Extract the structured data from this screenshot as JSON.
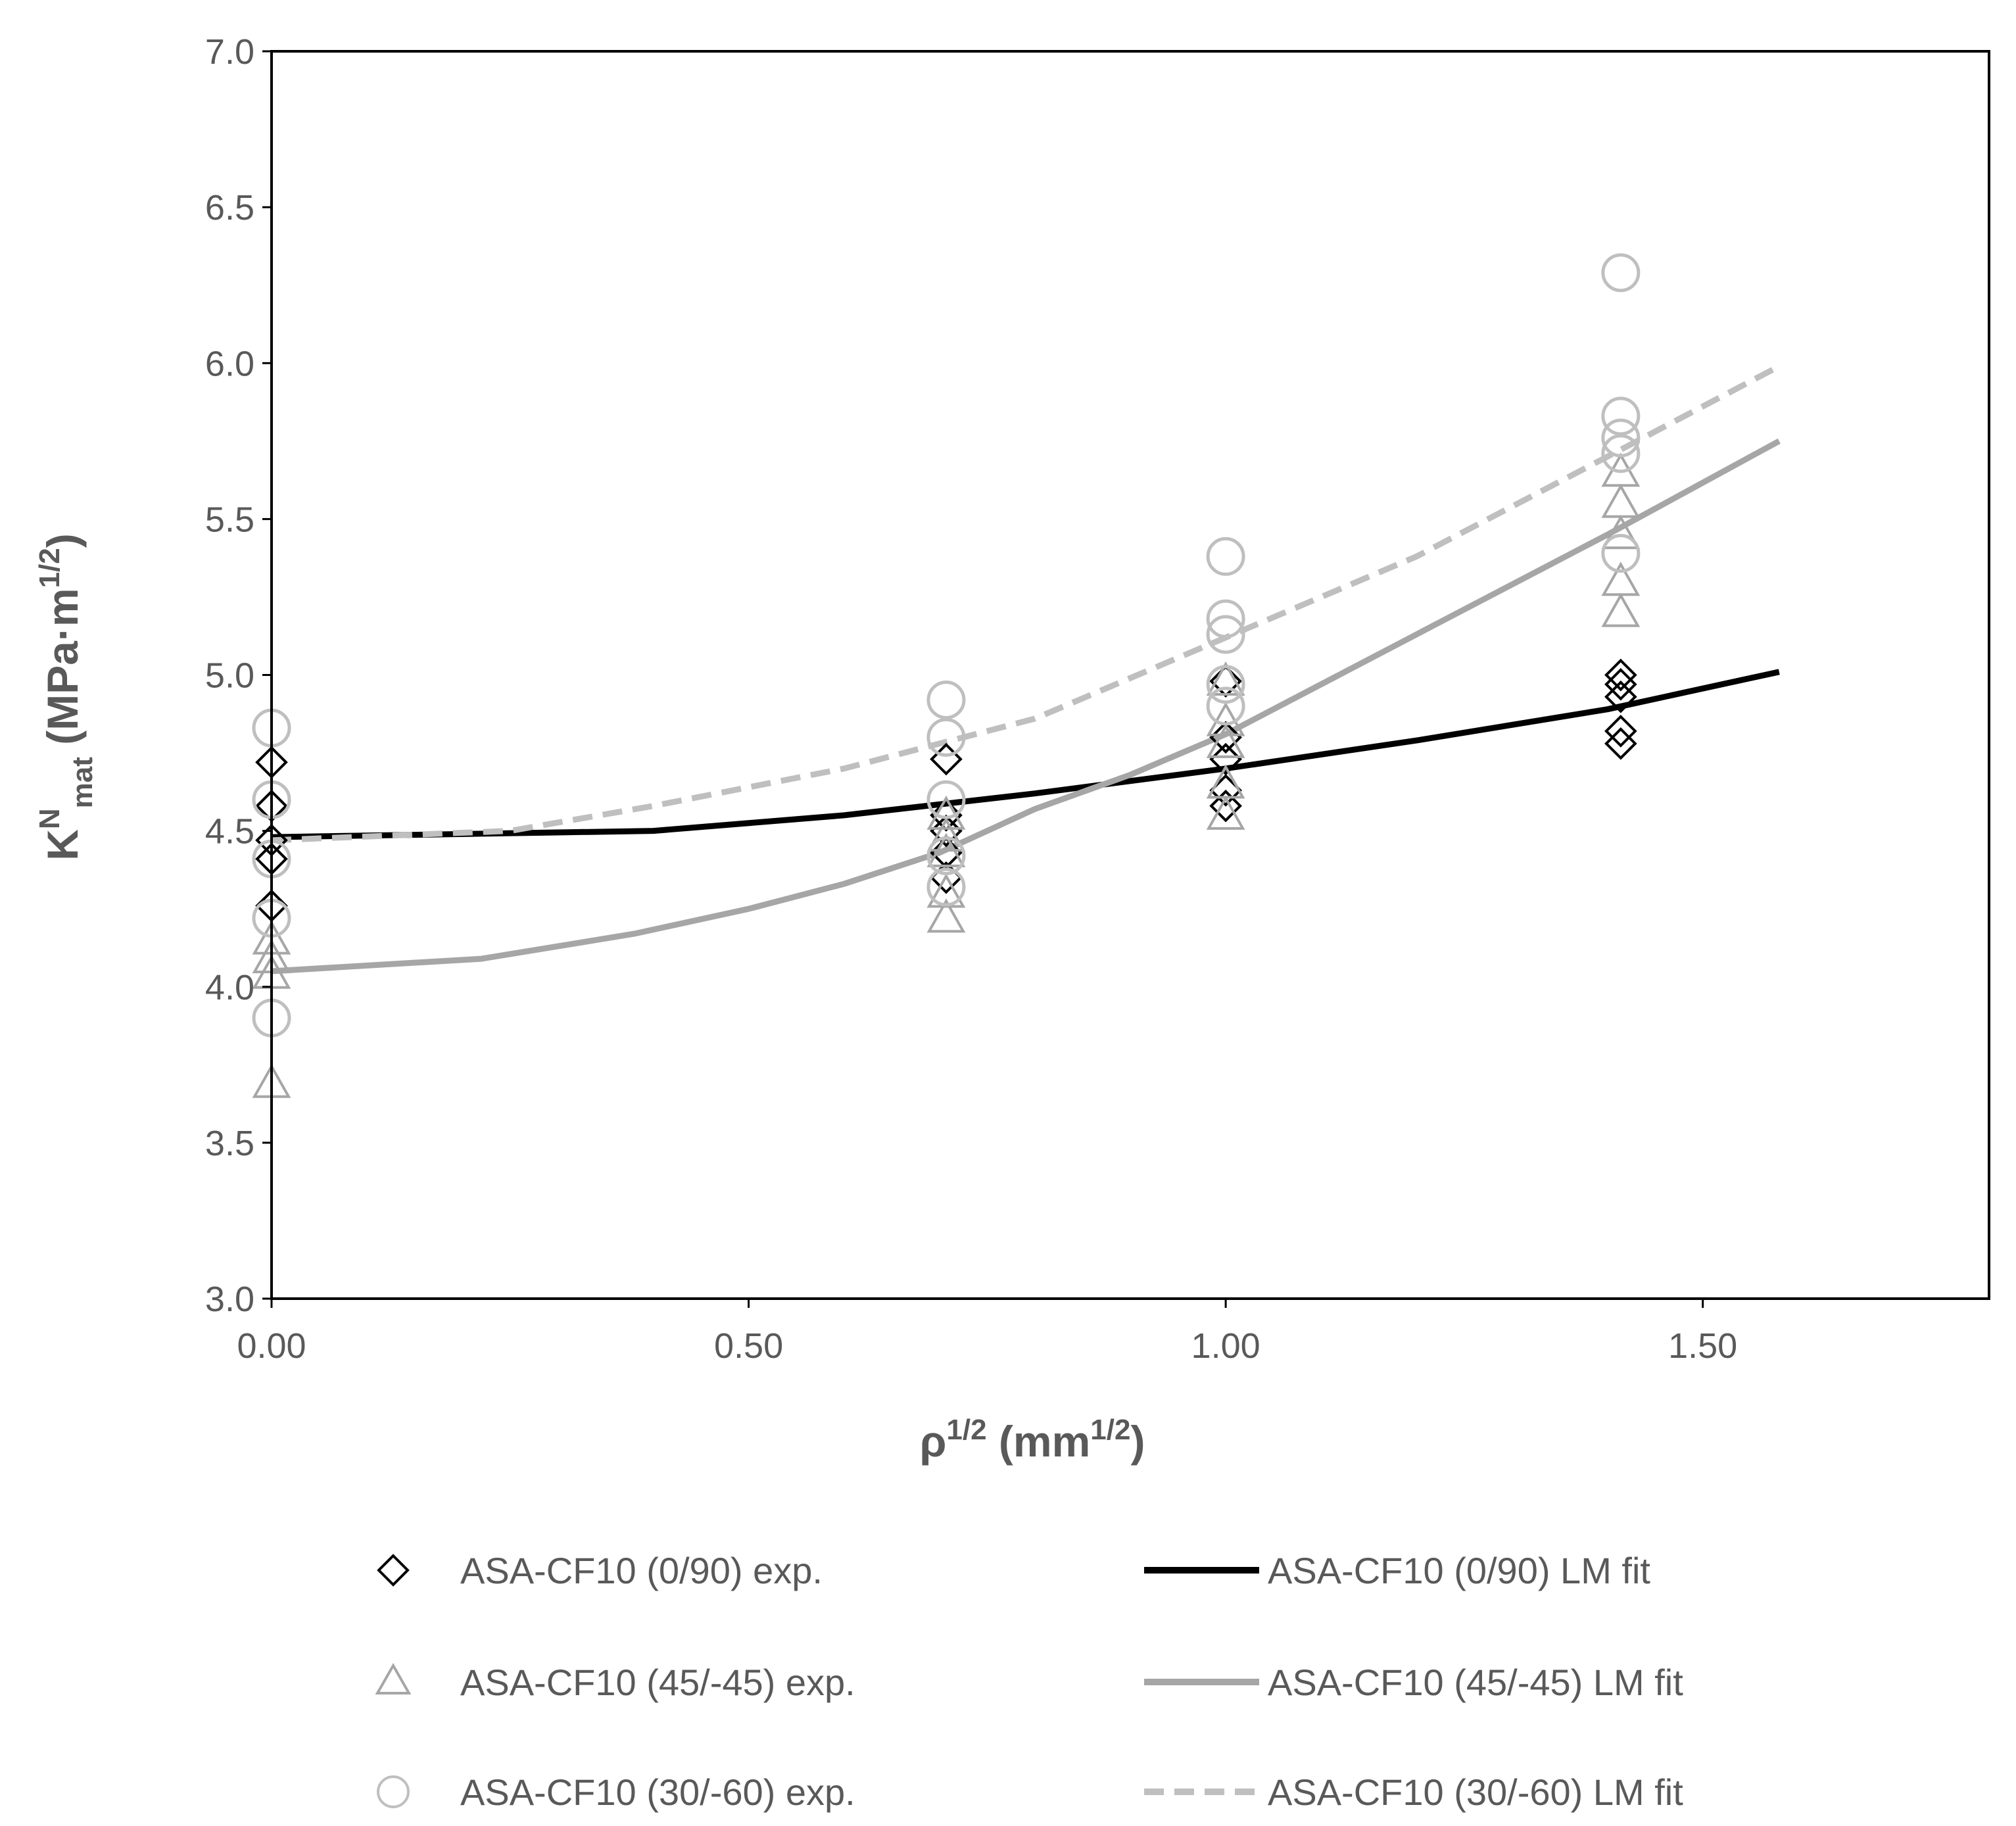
{
  "chart_data": {
    "type": "scatter",
    "title": "",
    "xlabel": {
      "base": "ρ",
      "sup1": "1/2",
      "unit_open": " (mm",
      "sup2": "1/2",
      "unit_close": ")"
    },
    "ylabel": {
      "base": "K",
      "sup": "N",
      "sub": "mat",
      "unit_open": " (MPa·m",
      "sup2": "1/2",
      "unit_close": ")"
    },
    "xlim": [
      0,
      1.8
    ],
    "ylim": [
      3.0,
      7.0
    ],
    "x_ticks": [
      0,
      0.5,
      1.0,
      1.5
    ],
    "x_tick_labels": [
      "0.00",
      "0.50",
      "1.00",
      "1.50"
    ],
    "y_ticks": [
      3.0,
      3.5,
      4.0,
      4.5,
      5.0,
      5.5,
      6.0,
      6.5,
      7.0
    ],
    "y_tick_labels": [
      "3.0",
      "3.5",
      "4.0",
      "4.5",
      "5.0",
      "5.5",
      "6.0",
      "6.5",
      "7.0"
    ],
    "grid": false,
    "legend_position": "bottom",
    "colors": {
      "black": "#000000",
      "gray": "#a6a6a6",
      "lightgray": "#bfbfbf",
      "axis": "#000000",
      "text": "#595959"
    },
    "series": [
      {
        "name": "ASA-CF10 (0/90) exp.",
        "kind": "scatter",
        "marker": "diamond",
        "color": "#000000",
        "points": [
          [
            0,
            4.72
          ],
          [
            0,
            4.58
          ],
          [
            0,
            4.47
          ],
          [
            0,
            4.41
          ],
          [
            0,
            4.26
          ],
          [
            0.707,
            4.73
          ],
          [
            0.707,
            4.55
          ],
          [
            0.707,
            4.5
          ],
          [
            0.707,
            4.43
          ],
          [
            0.707,
            4.35
          ],
          [
            1,
            4.98
          ],
          [
            1,
            4.8
          ],
          [
            1,
            4.73
          ],
          [
            1,
            4.63
          ],
          [
            1,
            4.58
          ],
          [
            1.414,
            5.0
          ],
          [
            1.414,
            4.97
          ],
          [
            1.414,
            4.93
          ],
          [
            1.414,
            4.82
          ],
          [
            1.414,
            4.78
          ]
        ]
      },
      {
        "name": "ASA-CF10 (45/-45) exp.",
        "kind": "scatter",
        "marker": "triangle",
        "color": "#a6a6a6",
        "points": [
          [
            0,
            4.15
          ],
          [
            0,
            4.09
          ],
          [
            0,
            4.04
          ],
          [
            0,
            3.69
          ],
          [
            0.707,
            4.55
          ],
          [
            0.707,
            4.48
          ],
          [
            0.707,
            4.43
          ],
          [
            0.707,
            4.3
          ],
          [
            0.707,
            4.22
          ],
          [
            1,
            4.98
          ],
          [
            1,
            4.85
          ],
          [
            1,
            4.78
          ],
          [
            1,
            4.65
          ],
          [
            1,
            4.55
          ],
          [
            1.414,
            5.65
          ],
          [
            1.414,
            5.55
          ],
          [
            1.414,
            5.45
          ],
          [
            1.414,
            5.3
          ],
          [
            1.414,
            5.2
          ]
        ]
      },
      {
        "name": "ASA-CF10 (30/-60) exp.",
        "kind": "scatter",
        "marker": "circle",
        "color": "#bfbfbf",
        "points": [
          [
            0,
            4.83
          ],
          [
            0,
            4.6
          ],
          [
            0,
            4.41
          ],
          [
            0,
            4.22
          ],
          [
            0,
            3.9
          ],
          [
            0.707,
            4.92
          ],
          [
            0.707,
            4.8
          ],
          [
            0.707,
            4.6
          ],
          [
            0.707,
            4.42
          ],
          [
            0.707,
            4.32
          ],
          [
            1,
            5.38
          ],
          [
            1,
            5.18
          ],
          [
            1,
            5.13
          ],
          [
            1,
            4.97
          ],
          [
            1,
            4.9
          ],
          [
            1.414,
            6.29
          ],
          [
            1.414,
            5.83
          ],
          [
            1.414,
            5.76
          ],
          [
            1.414,
            5.71
          ],
          [
            1.414,
            5.39
          ]
        ]
      },
      {
        "name": "ASA-CF10 (0/90) LM fit",
        "kind": "line",
        "style": "solid",
        "color": "#000000",
        "points": [
          [
            0,
            4.48
          ],
          [
            0.2,
            4.49
          ],
          [
            0.4,
            4.5
          ],
          [
            0.6,
            4.55
          ],
          [
            0.8,
            4.62
          ],
          [
            1.0,
            4.7
          ],
          [
            1.2,
            4.79
          ],
          [
            1.4,
            4.89
          ],
          [
            1.58,
            5.01
          ]
        ]
      },
      {
        "name": "ASA-CF10 (45/-45) LM fit",
        "kind": "line",
        "style": "solid",
        "color": "#a6a6a6",
        "points": [
          [
            0,
            4.05
          ],
          [
            0.22,
            4.09
          ],
          [
            0.38,
            4.17
          ],
          [
            0.5,
            4.25
          ],
          [
            0.6,
            4.33
          ],
          [
            0.7,
            4.43
          ],
          [
            0.8,
            4.57
          ],
          [
            0.9,
            4.68
          ],
          [
            1.0,
            4.81
          ],
          [
            1.2,
            5.13
          ],
          [
            1.4,
            5.45
          ],
          [
            1.58,
            5.75
          ]
        ]
      },
      {
        "name": "ASA-CF10 (30/-60) LM fit",
        "kind": "line",
        "style": "dashed",
        "color": "#bfbfbf",
        "points": [
          [
            0,
            4.47
          ],
          [
            0.25,
            4.5
          ],
          [
            0.4,
            4.58
          ],
          [
            0.6,
            4.7
          ],
          [
            0.8,
            4.86
          ],
          [
            1.0,
            5.12
          ],
          [
            1.2,
            5.38
          ],
          [
            1.4,
            5.7
          ],
          [
            1.58,
            5.99
          ]
        ]
      }
    ],
    "legend": [
      {
        "label": "ASA-CF10 (0/90) exp.",
        "symbol": "diamond",
        "color": "#000000"
      },
      {
        "label": "ASA-CF10 (0/90) LM fit",
        "symbol": "line-solid",
        "color": "#000000"
      },
      {
        "label": "ASA-CF10 (45/-45) exp.",
        "symbol": "triangle",
        "color": "#a6a6a6"
      },
      {
        "label": "ASA-CF10 (45/-45) LM fit",
        "symbol": "line-solid",
        "color": "#a6a6a6"
      },
      {
        "label": "ASA-CF10 (30/-60) exp.",
        "symbol": "circle",
        "color": "#bfbfbf"
      },
      {
        "label": "ASA-CF10 (30/-60) LM fit",
        "symbol": "line-dashed",
        "color": "#bfbfbf"
      }
    ]
  }
}
